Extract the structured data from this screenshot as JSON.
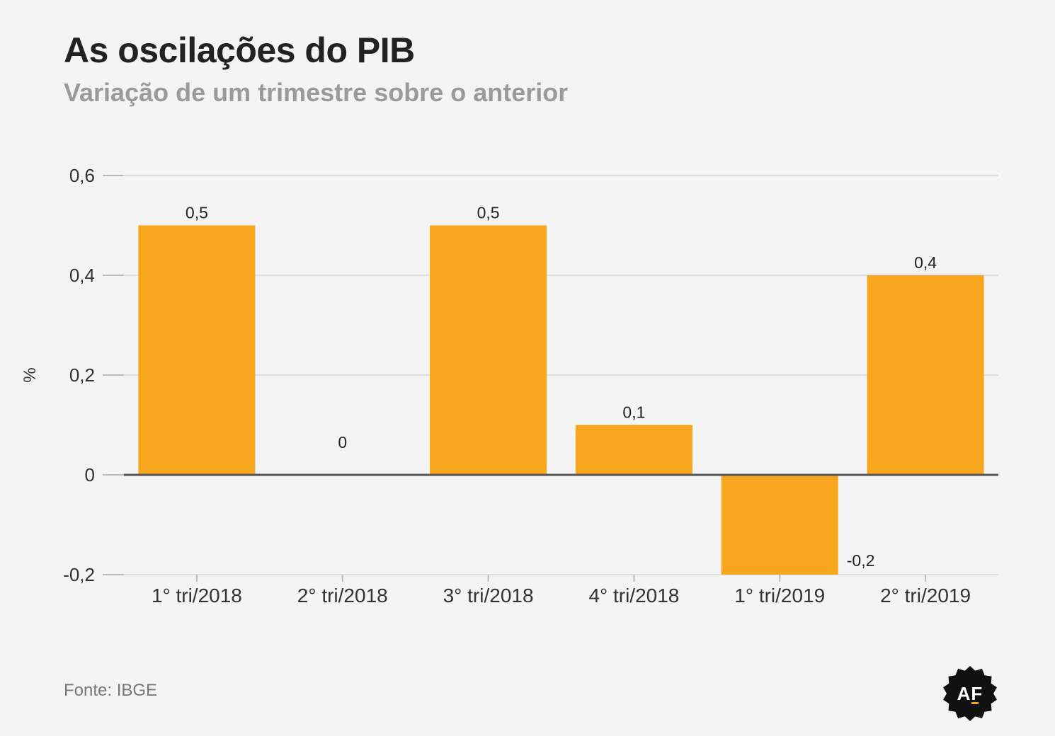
{
  "header": {
    "title": "As oscilações do PIB",
    "subtitle": "Variação de um trimestre sobre o anterior"
  },
  "source": "Fonte: IBGE",
  "logo": {
    "text": "AF",
    "icon": "af-seal-logo"
  },
  "colors": {
    "bar": "#f8a61e",
    "grid": "#dddddd",
    "zero_line": "#555555",
    "text": "#333333"
  },
  "chart_data": {
    "type": "bar",
    "categories": [
      "1° tri/2018",
      "2° tri/2018",
      "3° tri/2018",
      "4° tri/2018",
      "1° tri/2019",
      "2° tri/2019"
    ],
    "values": [
      0.5,
      0,
      0.5,
      0.1,
      -0.2,
      0.4
    ],
    "value_labels": [
      "0,5",
      "0",
      "0,5",
      "0,1",
      "-0,2",
      "0,4"
    ],
    "ylabel": "%",
    "ylim": [
      -0.2,
      0.6
    ],
    "yticks": [
      -0.2,
      0,
      0.2,
      0.4,
      0.6
    ],
    "ytick_labels": [
      "-0,2",
      "0",
      "0,2",
      "0,4",
      "0,6"
    ],
    "grid": true
  }
}
